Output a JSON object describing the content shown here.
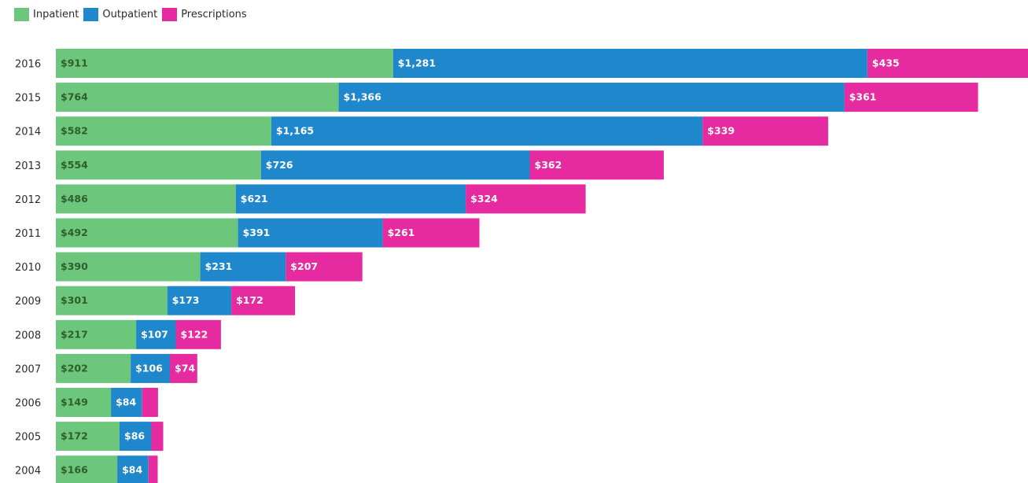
{
  "colors": {
    "inpatient": "#6cc77d",
    "outpatient": "#1f87cc",
    "prescriptions": "#e62aa0"
  },
  "chart_data": {
    "type": "bar",
    "orientation": "horizontal",
    "stacked": true,
    "title": "",
    "xlabel": "",
    "ylabel": "",
    "legend": "top-left",
    "grid": false,
    "categories": [
      "2016",
      "2015",
      "2014",
      "2013",
      "2012",
      "2011",
      "2010",
      "2009",
      "2008",
      "2007",
      "2006",
      "2005",
      "2004"
    ],
    "series": [
      {
        "name": "Inpatient",
        "color": "#6cc77d",
        "label_color": "#2f5e2a",
        "values": [
          911,
          764,
          582,
          554,
          486,
          492,
          390,
          301,
          217,
          202,
          149,
          172,
          166
        ],
        "labels": [
          "$911",
          "$764",
          "$582",
          "$554",
          "$486",
          "$492",
          "$390",
          "$301",
          "$217",
          "$202",
          "$149",
          "$172",
          "$166"
        ]
      },
      {
        "name": "Outpatient",
        "color": "#1f87cc",
        "label_color": "#ffffff",
        "values": [
          1281,
          1366,
          1165,
          726,
          621,
          391,
          231,
          173,
          107,
          106,
          84,
          86,
          84
        ],
        "labels": [
          "$1,281",
          "$1,366",
          "$1,165",
          "$726",
          "$621",
          "$391",
          "$231",
          "$173",
          "$107",
          "$106",
          "$84",
          "$86",
          "$84"
        ]
      },
      {
        "name": "Prescriptions",
        "color": "#e62aa0",
        "label_color": "#ffffff",
        "values": [
          435,
          361,
          339,
          362,
          324,
          261,
          207,
          172,
          122,
          74,
          43,
          32,
          25
        ],
        "labels": [
          "$435",
          "$361",
          "$339",
          "$362",
          "$324",
          "$261",
          "$207",
          "$172",
          "$122",
          "$74",
          "",
          "",
          ""
        ]
      }
    ]
  }
}
